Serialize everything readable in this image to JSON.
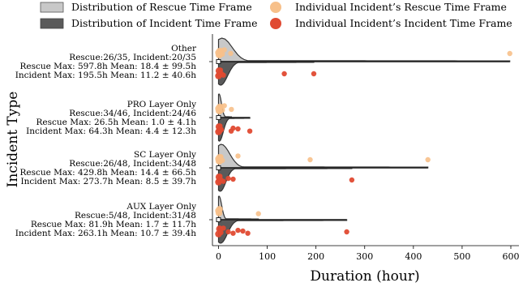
{
  "chart_data": {
    "type": "violin",
    "xlabel": "Duration (hour)",
    "ylabel": "Incident Type",
    "xlim": [
      -5,
      610
    ],
    "xticks": [
      0,
      100,
      200,
      300,
      400,
      500,
      600
    ],
    "grid": false,
    "legend": {
      "placement": "top",
      "entries": [
        {
          "label": "Distribution of Rescue Time Frame",
          "kind": "rescue-dist"
        },
        {
          "label": "Distribution of Incident Time Frame",
          "kind": "incident-dist"
        },
        {
          "label": "Individual Incident’s Rescue Time Frame",
          "kind": "rescue-point"
        },
        {
          "label": "Individual Incident’s Incident Time Frame",
          "kind": "incident-point"
        }
      ]
    },
    "colors": {
      "rescue_fill": "#c8c8c8",
      "incident_fill": "#5a5a5a",
      "outline": "#333333",
      "rescue_point": "#f7c08a",
      "incident_point": "#e04a32"
    },
    "categories": [
      {
        "name": "Other",
        "label_lines": [
          "Other",
          "Rescue:26/35, Incident:20/35",
          "Rescue Max: 597.8h Mean: 18.4 ± 99.5h",
          "Incident Max: 195.5h Mean: 11.2 ± 40.6h"
        ],
        "rescue_max": 597.8,
        "rescue_mean": 18.4,
        "rescue_std": 99.5,
        "incident_max": 195.5,
        "incident_mean": 11.2,
        "incident_std": 40.6,
        "rescue_points": [
          0,
          1,
          2,
          3,
          5,
          8,
          12,
          25,
          597.8
        ],
        "incident_points": [
          0,
          1,
          2,
          4,
          6,
          10,
          135,
          195.5
        ]
      },
      {
        "name": "PRO Layer Only",
        "label_lines": [
          "PRO Layer Only",
          "Rescue:34/46, Incident:24/46",
          "Rescue Max: 26.5h Mean: 1.0 ± 4.1h",
          "Incident Max: 64.3h Mean: 4.4 ± 12.3h"
        ],
        "rescue_max": 26.5,
        "rescue_mean": 1.0,
        "rescue_std": 4.1,
        "incident_max": 64.3,
        "incident_mean": 4.4,
        "incident_std": 12.3,
        "rescue_points": [
          0,
          1,
          2,
          3,
          5,
          8,
          12,
          26.5
        ],
        "incident_points": [
          0,
          1,
          2,
          3,
          6,
          26,
          30,
          40,
          64.3
        ]
      },
      {
        "name": "SC Layer Only",
        "label_lines": [
          "SC Layer Only",
          "Rescue:26/48, Incident:34/48",
          "Rescue Max: 429.8h Mean: 14.4 ± 66.5h",
          "Incident Max: 273.7h Mean: 8.5 ± 39.7h"
        ],
        "rescue_max": 429.8,
        "rescue_mean": 14.4,
        "rescue_std": 66.5,
        "incident_max": 273.7,
        "incident_mean": 8.5,
        "incident_std": 39.7,
        "rescue_points": [
          0,
          1,
          2,
          3,
          5,
          8,
          40,
          188,
          429.8
        ],
        "incident_points": [
          0,
          1,
          2,
          3,
          5,
          10,
          20,
          30,
          273.7
        ]
      },
      {
        "name": "AUX Layer Only",
        "label_lines": [
          "AUX Layer Only",
          "Rescue:5/48, Incident:31/48",
          "Rescue Max: 81.9h Mean: 1.7 ± 11.7h",
          "Incident Max: 263.1h Mean: 10.7 ± 39.4h"
        ],
        "rescue_max": 81.9,
        "rescue_mean": 1.7,
        "rescue_std": 11.7,
        "incident_max": 263.1,
        "incident_mean": 10.7,
        "incident_std": 39.4,
        "rescue_points": [
          0,
          1,
          2,
          81.9
        ],
        "incident_points": [
          0,
          2,
          5,
          10,
          20,
          30,
          40,
          50,
          60,
          263.1
        ]
      }
    ]
  }
}
